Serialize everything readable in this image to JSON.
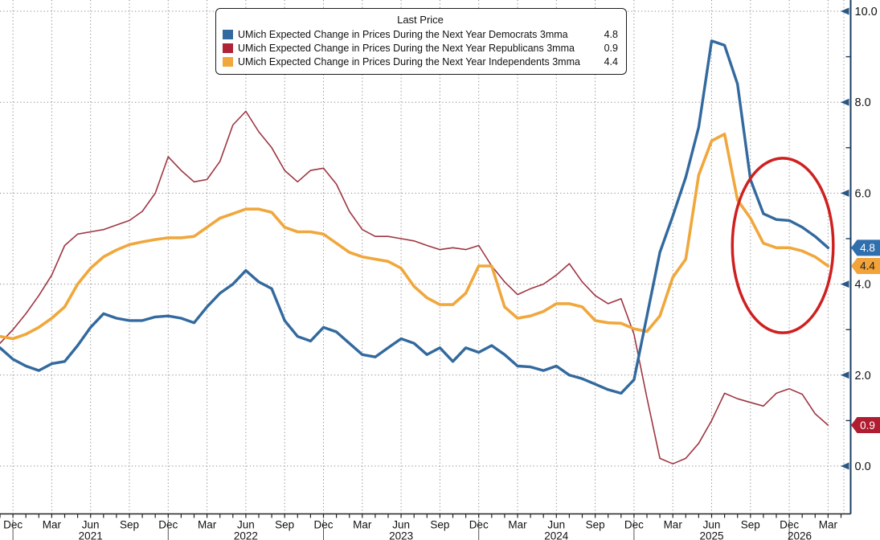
{
  "legend": {
    "title": "Last Price",
    "items": [
      {
        "id": "democrats",
        "label": "UMich Expected Change in Prices During the Next Year Democrats 3mma",
        "value": "4.8",
        "color": "#32699e"
      },
      {
        "id": "republicans",
        "label": "UMich Expected Change in Prices During the Next Year Republicans 3mma",
        "value": "0.9",
        "color": "#b02337"
      },
      {
        "id": "independents",
        "label": "UMich Expected Change in Prices During the Next Year Independents 3mma",
        "value": "4.4",
        "color": "#f0a73c"
      }
    ]
  },
  "y_axis": {
    "ticks": [
      {
        "label": "10.0",
        "value": 10
      },
      {
        "label": "8.0",
        "value": 8
      },
      {
        "label": "6.0",
        "value": 6
      },
      {
        "label": "4.0",
        "value": 4
      },
      {
        "label": "2.0",
        "value": 2
      },
      {
        "label": "0.0",
        "value": 0
      }
    ],
    "minor_tick_values": [
      9,
      7,
      5,
      3,
      1
    ],
    "range": [
      0,
      10
    ]
  },
  "x_axis": {
    "quarter_labels": [
      "Dec",
      "Mar",
      "Jun",
      "Sep",
      "Dec",
      "Mar",
      "Jun",
      "Sep",
      "Dec",
      "Mar",
      "Jun",
      "Sep",
      "Dec",
      "Mar",
      "Jun",
      "Sep",
      "Dec",
      "Mar",
      "Jun",
      "Sep",
      "Dec",
      "Mar"
    ],
    "year_labels": [
      {
        "label": "2021",
        "month_index": 7
      },
      {
        "label": "2022",
        "month_index": 19
      },
      {
        "label": "2023",
        "month_index": 31
      },
      {
        "label": "2024",
        "month_index": 43
      },
      {
        "label": "2025",
        "month_index": 55
      },
      {
        "label": "2026",
        "month_index": 61.8
      }
    ],
    "year_separator_month_indices": [
      1,
      13,
      25,
      37,
      49,
      61
    ]
  },
  "price_badges": [
    {
      "value": "4.8",
      "y_value": 4.8,
      "color": "#2f6fae",
      "text_color": "#ffffff"
    },
    {
      "value": "4.4",
      "y_value": 4.4,
      "color": "#f2a33a",
      "text_color": "#222222"
    },
    {
      "value": "0.9",
      "y_value": 0.9,
      "color": "#b01c30",
      "text_color": "#ffffff"
    }
  ],
  "annotation_ellipse": {
    "center_month_index": 60.5,
    "center_value": 4.85,
    "rx_months": 3.9,
    "ry_value": 1.92,
    "color": "#cf2020"
  },
  "colors": {
    "democrats_line": "#32699e",
    "republicans_line": "#9e3642",
    "independents_line": "#f0a73c",
    "axis_line": "#1c3e63",
    "bottom_axis": "#222222",
    "tick_arrow": "#2a5684",
    "grid": "#8f8f8f",
    "text": "#111111"
  },
  "chart_data": {
    "type": "line",
    "title": "Last Price",
    "x_start": "2020-11",
    "frequency": "monthly",
    "months": [
      "2020-11",
      "2020-12",
      "2021-01",
      "2021-02",
      "2021-03",
      "2021-04",
      "2021-05",
      "2021-06",
      "2021-07",
      "2021-08",
      "2021-09",
      "2021-10",
      "2021-11",
      "2021-12",
      "2022-01",
      "2022-02",
      "2022-03",
      "2022-04",
      "2022-05",
      "2022-06",
      "2022-07",
      "2022-08",
      "2022-09",
      "2022-10",
      "2022-11",
      "2022-12",
      "2023-01",
      "2023-02",
      "2023-03",
      "2023-04",
      "2023-05",
      "2023-06",
      "2023-07",
      "2023-08",
      "2023-09",
      "2023-10",
      "2023-11",
      "2023-12",
      "2024-01",
      "2024-02",
      "2024-03",
      "2024-04",
      "2024-05",
      "2024-06",
      "2024-07",
      "2024-08",
      "2024-09",
      "2024-10",
      "2024-11",
      "2024-12",
      "2025-01",
      "2025-02",
      "2025-03",
      "2025-04",
      "2025-05",
      "2025-06",
      "2025-07",
      "2025-08",
      "2025-09",
      "2025-10",
      "2025-11",
      "2025-12",
      "2026-01",
      "2026-02",
      "2026-03"
    ],
    "ylim": [
      0,
      10
    ],
    "grid": true,
    "legend_position": "top",
    "series": [
      {
        "name": "UMich Expected Change in Prices During the Next Year Democrats 3mma",
        "last_price": 4.8,
        "values": [
          2.6,
          2.35,
          2.2,
          2.1,
          2.25,
          2.3,
          2.65,
          3.05,
          3.35,
          3.25,
          3.2,
          3.2,
          3.28,
          3.3,
          3.25,
          3.15,
          3.5,
          3.8,
          4.0,
          4.3,
          4.05,
          3.9,
          3.2,
          2.85,
          2.75,
          3.05,
          2.95,
          2.7,
          2.45,
          2.4,
          2.6,
          2.8,
          2.7,
          2.45,
          2.6,
          2.3,
          2.6,
          2.5,
          2.65,
          2.45,
          2.2,
          2.18,
          2.1,
          2.2,
          2.0,
          1.92,
          1.8,
          1.68,
          1.6,
          1.9,
          3.3,
          4.7,
          5.5,
          6.35,
          7.45,
          9.35,
          9.25,
          8.4,
          6.3,
          5.55,
          5.42,
          5.4,
          5.25,
          5.05,
          4.8
        ]
      },
      {
        "name": "UMich Expected Change in Prices During the Next Year Republicans 3mma",
        "last_price": 0.9,
        "values": [
          2.7,
          3.0,
          3.35,
          3.75,
          4.2,
          4.85,
          5.1,
          5.15,
          5.2,
          5.3,
          5.4,
          5.6,
          6.0,
          6.8,
          6.5,
          6.25,
          6.3,
          6.7,
          7.5,
          7.8,
          7.35,
          7.0,
          6.5,
          6.25,
          6.5,
          6.55,
          6.2,
          5.6,
          5.2,
          5.05,
          5.05,
          5.0,
          4.95,
          4.85,
          4.76,
          4.8,
          4.76,
          4.85,
          4.4,
          4.05,
          3.77,
          3.9,
          4.0,
          4.2,
          4.45,
          4.05,
          3.75,
          3.57,
          3.68,
          2.9,
          1.5,
          0.17,
          0.05,
          0.17,
          0.5,
          1.0,
          1.6,
          1.48,
          1.4,
          1.32,
          1.6,
          1.7,
          1.58,
          1.15,
          0.9
        ]
      },
      {
        "name": "UMich Expected Change in Prices During the Next Year Independents 3mma",
        "last_price": 4.4,
        "values": [
          2.85,
          2.8,
          2.9,
          3.05,
          3.25,
          3.5,
          4.0,
          4.35,
          4.6,
          4.75,
          4.87,
          4.93,
          4.98,
          5.02,
          5.02,
          5.05,
          5.25,
          5.45,
          5.55,
          5.65,
          5.65,
          5.58,
          5.25,
          5.15,
          5.15,
          5.1,
          4.9,
          4.7,
          4.6,
          4.55,
          4.5,
          4.35,
          3.95,
          3.7,
          3.55,
          3.55,
          3.8,
          4.4,
          4.4,
          3.5,
          3.25,
          3.3,
          3.4,
          3.57,
          3.57,
          3.5,
          3.2,
          3.15,
          3.14,
          3.02,
          2.96,
          3.3,
          4.15,
          4.55,
          6.4,
          7.15,
          7.3,
          5.85,
          5.45,
          4.9,
          4.8,
          4.8,
          4.73,
          4.6,
          4.4
        ]
      }
    ]
  }
}
